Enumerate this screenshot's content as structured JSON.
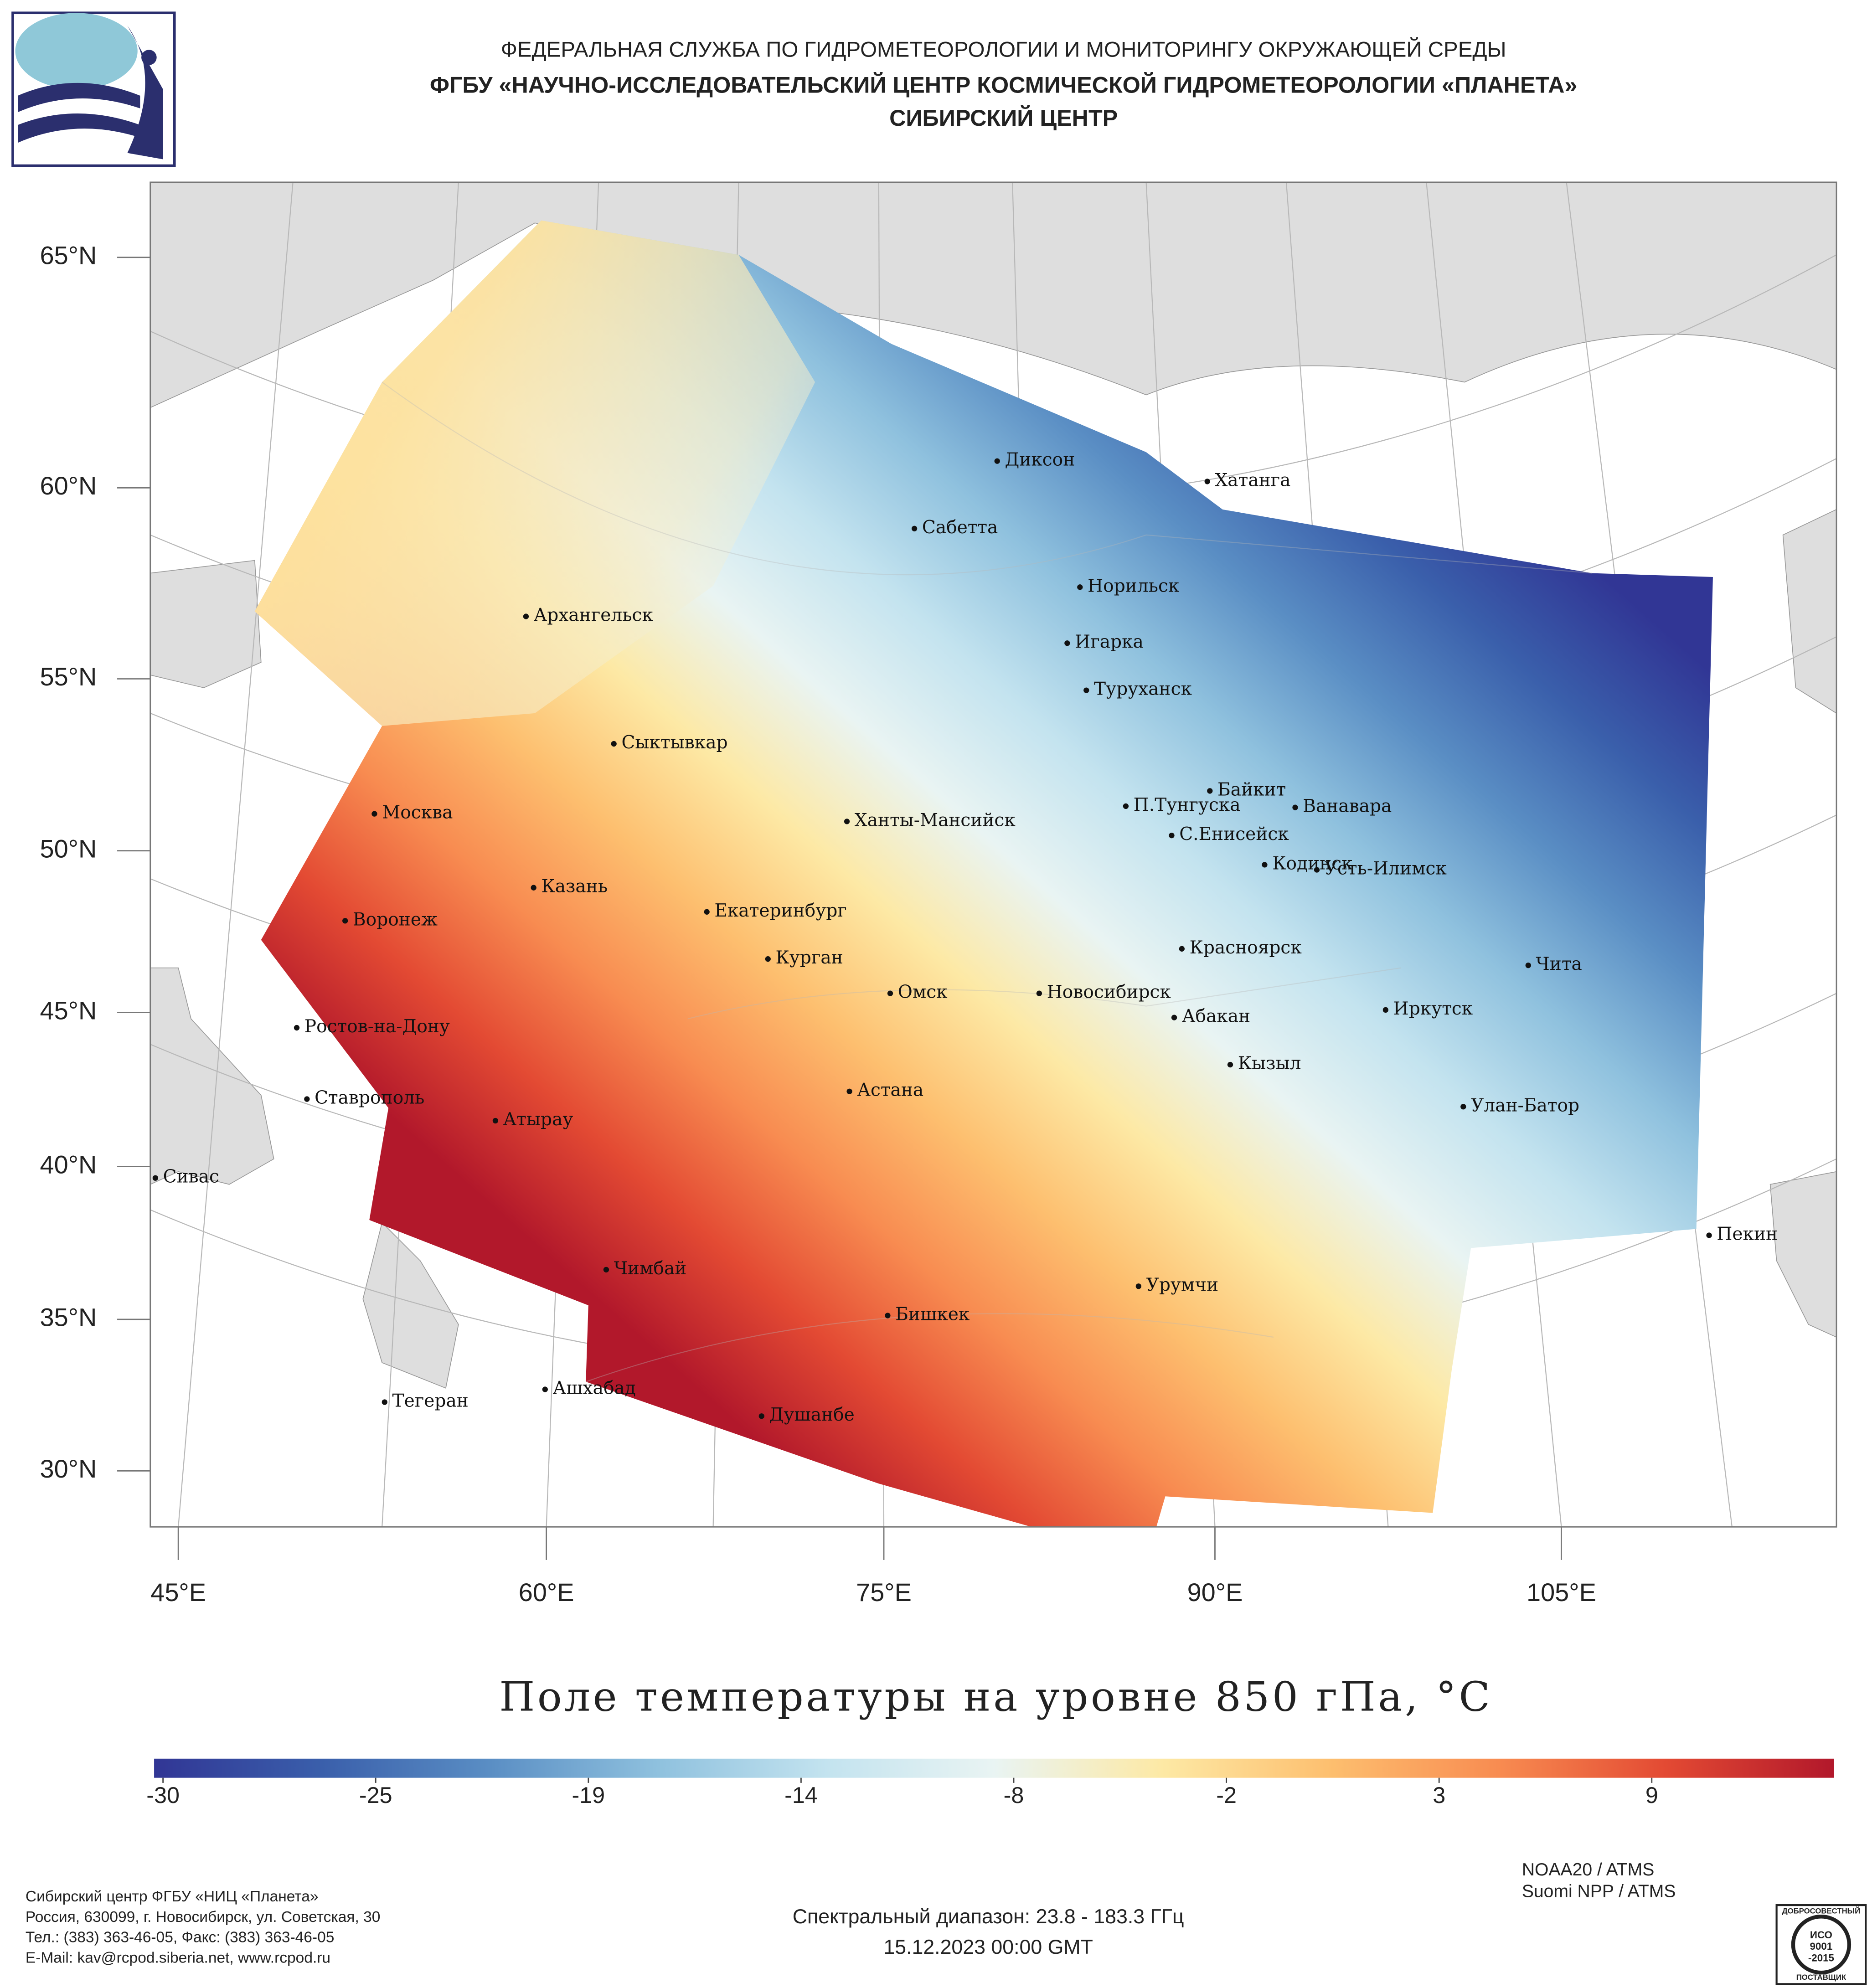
{
  "header": {
    "line1": "ФЕДЕРАЛЬНАЯ СЛУЖБА ПО ГИДРОМЕТЕОРОЛОГИИ И МОНИТОРИНГУ ОКРУЖАЮЩЕЙ СРЕДЫ",
    "line2": "ФГБУ «НАУЧНО-ИССЛЕДОВАТЕЛЬСКИЙ ЦЕНТР КОСМИЧЕСКОЙ ГИДРОМЕТЕОРОЛОГИИ «ПЛАНЕТА»",
    "line3": "СИБИРСКИЙ ЦЕНТР"
  },
  "map": {
    "lat_labels": [
      "65°N",
      "60°N",
      "55°N",
      "50°N",
      "45°N",
      "40°N",
      "35°N",
      "30°N"
    ],
    "lon_labels": [
      "45°E",
      "60°E",
      "75°E",
      "90°E",
      "105°E"
    ],
    "cities": [
      "Диксон",
      "Хатанга",
      "Сабетта",
      "Норильск",
      "Архангельск",
      "Игарка",
      "Туруханск",
      "Сыктывкар",
      "Байкит",
      "П.Тунгуска",
      "Ванавара",
      "Москва",
      "Ханты-Мансийск",
      "С.Енисейск",
      "Кодинск",
      "Усть-Илимск",
      "Казань",
      "Екатеринбург",
      "Воронеж",
      "Красноярск",
      "Курган",
      "Чита",
      "Омск",
      "Новосибирск",
      "Ростов-на-Дону",
      "Иркутск",
      "Абакан",
      "Кызыл",
      "Астана",
      "Ставрополь",
      "Улан-Батор",
      "Атырау",
      "Сивас",
      "Пекин",
      "Чимбай",
      "Урумчи",
      "Бишкек",
      "Ашхабад",
      "Тегеран",
      "Душанбе"
    ]
  },
  "title": "Поле температуры на уровне 850 гПа, °С",
  "colorbar": {
    "ticks": [
      -30,
      -25,
      -19,
      -14,
      -8,
      -2,
      3,
      9
    ],
    "colors": [
      "#313695",
      "#3a5fab",
      "#5a8ec4",
      "#8fc1de",
      "#c3e3ef",
      "#e9f4f3",
      "#fde9a5",
      "#fdbf6f",
      "#f88c51",
      "#e34a33",
      "#b2182b"
    ]
  },
  "satellites": [
    "NOAA20 / ATMS",
    "Suomi NPP / ATMS"
  ],
  "spectral_range": "Спектральный диапазон: 23.8 - 183.3 ГГц",
  "datetime": "15.12.2023 00:00 GMT",
  "footer": [
    "Сибирский центр ФГБУ «НИЦ «Планета»",
    "Россия, 630099, г. Новосибирск, ул. Советская, 30",
    "Тел.: (383) 363-46-05, Факс: (383) 363-46-05",
    "E-Mail: kav@rcpod.siberia.net, www.rcpod.ru"
  ],
  "certificate": [
    "ДОБРОСОВЕСТНЫЙ",
    "ИСО",
    "9001",
    "-2015",
    "ПОСТАВЩИК"
  ]
}
